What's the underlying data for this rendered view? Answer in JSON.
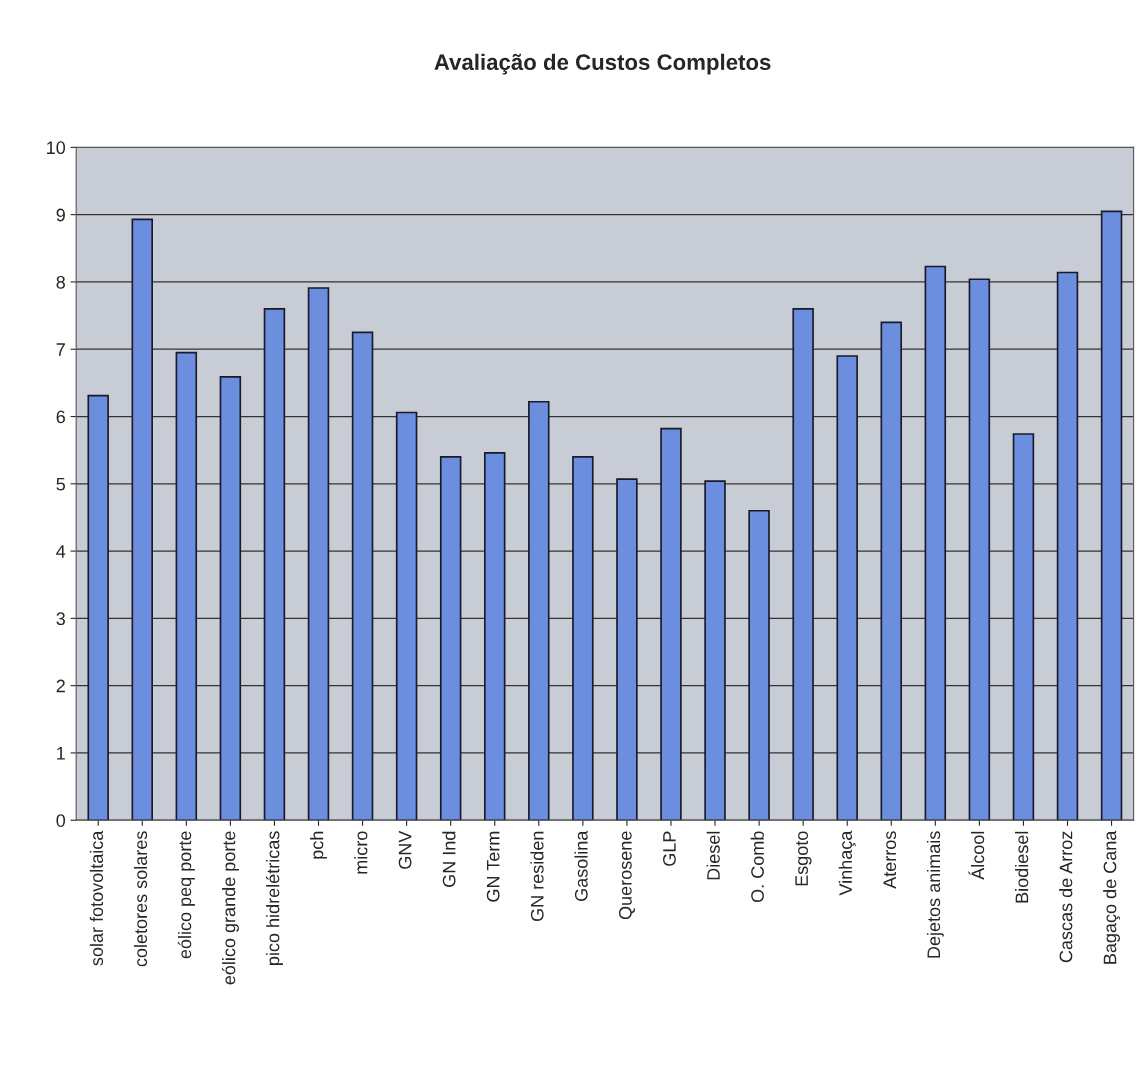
{
  "chart_data": {
    "type": "bar",
    "title": "Avaliação de Custos Completos",
    "categories": [
      "solar fotovoltaica",
      "coletores solares",
      "eólico peq porte",
      "eólico grande porte",
      "pico hidrelétricas",
      "pch",
      "micro",
      "GNV",
      "GN Ind",
      "GN Term",
      "GN residen",
      "Gasolina",
      "Querosene",
      "GLP",
      "Diesel",
      "O. Comb",
      "Esgoto",
      "Vinhaça",
      "Aterros",
      "Dejetos animais",
      "Álcool",
      "Biodiesel",
      "Cascas de Arroz",
      "Bagaço de Cana"
    ],
    "values": [
      6.31,
      8.93,
      6.95,
      6.59,
      7.6,
      7.91,
      7.25,
      6.06,
      5.4,
      5.46,
      6.22,
      5.4,
      5.07,
      5.82,
      5.04,
      4.6,
      7.6,
      6.9,
      7.4,
      8.23,
      8.04,
      5.74,
      8.14,
      9.05
    ],
    "color": "#6b8fde",
    "ylim": [
      0,
      10
    ],
    "yticks": [
      0,
      1,
      2,
      3,
      4,
      5,
      6,
      7,
      8,
      9,
      10
    ],
    "grid": "y"
  }
}
